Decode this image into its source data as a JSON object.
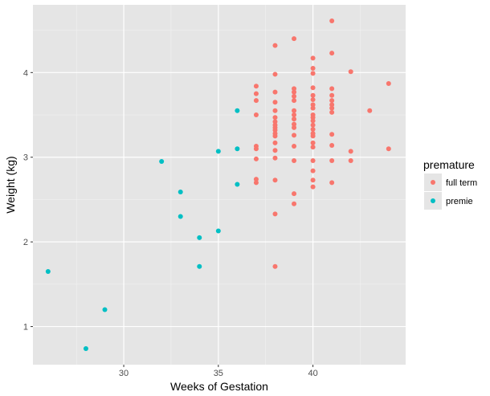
{
  "chart_data": {
    "type": "scatter",
    "title": "",
    "xlabel": "Weeks of Gestation",
    "ylabel": "Weight (kg)",
    "xlim": [
      25.2,
      44.9
    ],
    "ylim": [
      0.55,
      4.8
    ],
    "x_ticks": [
      30,
      35,
      40
    ],
    "y_ticks": [
      1,
      2,
      3,
      4
    ],
    "grid": true,
    "legend": {
      "title": "premature",
      "position": "right"
    },
    "colors": {
      "full term": "#f8766d",
      "premie": "#00bfc4",
      "panel": "#e5e5e5",
      "grid": "#ffffff"
    },
    "series": [
      {
        "name": "full term",
        "color": "#f8766d",
        "points": [
          [
            37,
            3.84
          ],
          [
            37,
            3.75
          ],
          [
            37,
            3.67
          ],
          [
            37,
            3.5
          ],
          [
            37,
            3.13
          ],
          [
            37,
            3.1
          ],
          [
            37,
            2.98
          ],
          [
            37,
            2.74
          ],
          [
            37,
            2.7
          ],
          [
            38,
            4.32
          ],
          [
            38,
            3.98
          ],
          [
            38,
            3.77
          ],
          [
            38,
            3.65
          ],
          [
            38,
            3.55
          ],
          [
            38,
            3.47
          ],
          [
            38,
            3.42
          ],
          [
            38,
            3.38
          ],
          [
            38,
            3.35
          ],
          [
            38,
            3.32
          ],
          [
            38,
            3.28
          ],
          [
            38,
            3.25
          ],
          [
            38,
            3.17
          ],
          [
            38,
            3.08
          ],
          [
            38,
            2.99
          ],
          [
            38,
            2.73
          ],
          [
            38,
            2.33
          ],
          [
            38,
            1.71
          ],
          [
            39,
            4.4
          ],
          [
            39,
            3.81
          ],
          [
            39,
            3.77
          ],
          [
            39,
            3.72
          ],
          [
            39,
            3.67
          ],
          [
            39,
            3.55
          ],
          [
            39,
            3.5
          ],
          [
            39,
            3.45
          ],
          [
            39,
            3.39
          ],
          [
            39,
            3.35
          ],
          [
            39,
            3.26
          ],
          [
            39,
            3.13
          ],
          [
            39,
            2.96
          ],
          [
            39,
            2.57
          ],
          [
            39,
            2.45
          ],
          [
            40,
            4.17
          ],
          [
            40,
            4.05
          ],
          [
            40,
            3.99
          ],
          [
            40,
            3.82
          ],
          [
            40,
            3.73
          ],
          [
            40,
            3.68
          ],
          [
            40,
            3.62
          ],
          [
            40,
            3.58
          ],
          [
            40,
            3.5
          ],
          [
            40,
            3.47
          ],
          [
            40,
            3.43
          ],
          [
            40,
            3.38
          ],
          [
            40,
            3.33
          ],
          [
            40,
            3.28
          ],
          [
            40,
            3.25
          ],
          [
            40,
            3.17
          ],
          [
            40,
            3.12
          ],
          [
            40,
            2.96
          ],
          [
            40,
            2.84
          ],
          [
            40,
            2.73
          ],
          [
            40,
            2.65
          ],
          [
            41,
            4.61
          ],
          [
            41,
            4.23
          ],
          [
            41,
            3.81
          ],
          [
            41,
            3.73
          ],
          [
            41,
            3.67
          ],
          [
            41,
            3.62
          ],
          [
            41,
            3.58
          ],
          [
            41,
            3.53
          ],
          [
            41,
            3.27
          ],
          [
            41,
            3.14
          ],
          [
            41,
            2.96
          ],
          [
            41,
            2.7
          ],
          [
            42,
            4.01
          ],
          [
            42,
            3.07
          ],
          [
            42,
            2.96
          ],
          [
            43,
            3.55
          ],
          [
            44,
            3.87
          ],
          [
            44,
            3.1
          ]
        ]
      },
      {
        "name": "premie",
        "color": "#00bfc4",
        "points": [
          [
            26,
            1.65
          ],
          [
            28,
            0.74
          ],
          [
            29,
            1.2
          ],
          [
            32,
            2.95
          ],
          [
            33,
            2.59
          ],
          [
            33,
            2.3
          ],
          [
            34,
            2.05
          ],
          [
            34,
            1.71
          ],
          [
            35,
            3.07
          ],
          [
            35,
            2.13
          ],
          [
            36,
            3.55
          ],
          [
            36,
            3.1
          ],
          [
            36,
            2.68
          ]
        ]
      }
    ]
  }
}
